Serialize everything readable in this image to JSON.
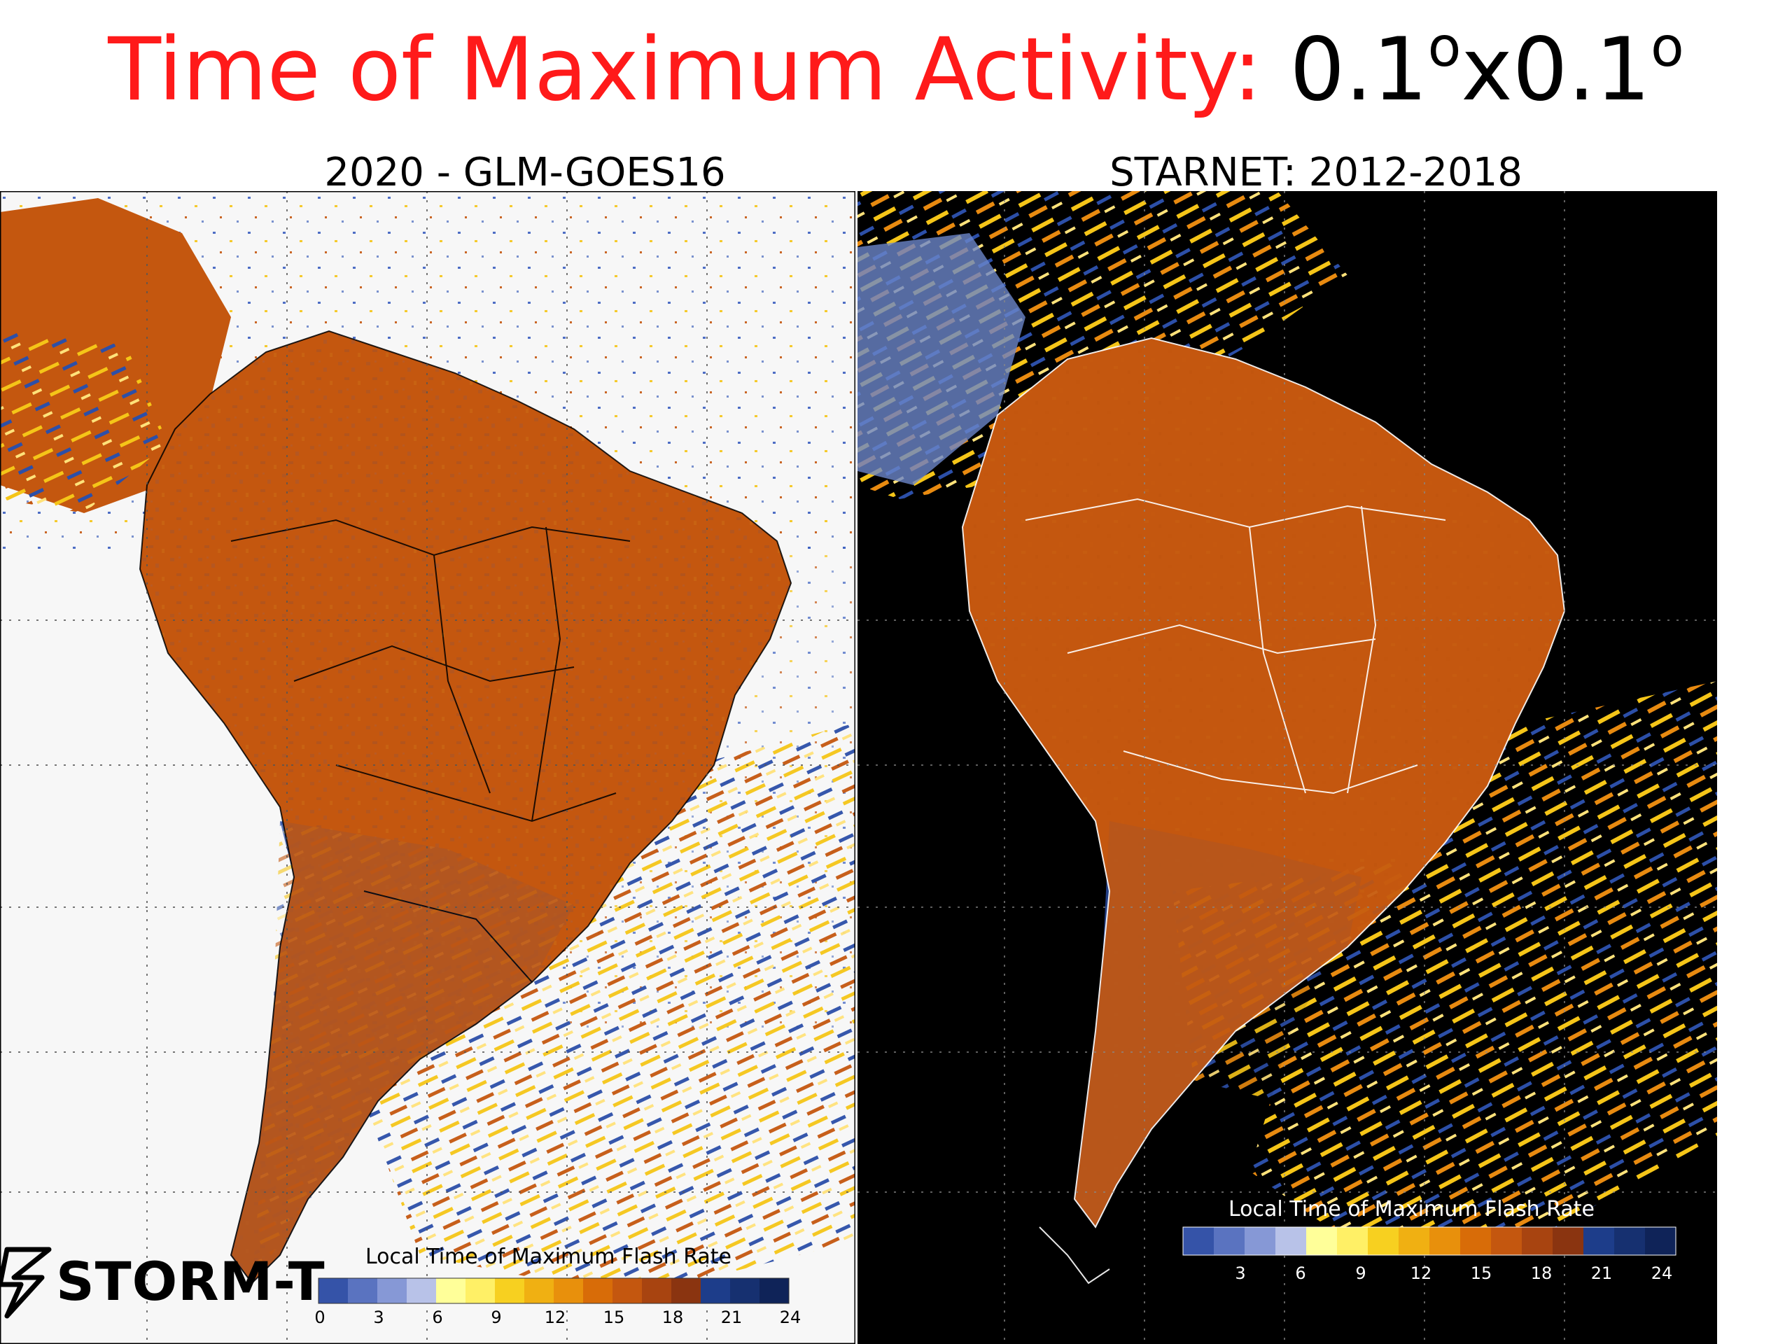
{
  "title": {
    "red_part": "Time of Maximum Activity:",
    "black_part": "0.1",
    "sup1": "o",
    "mid": "x0.1",
    "sup2": "o"
  },
  "panels": [
    {
      "title": "2020 - GLM-GOES16",
      "colorbar_title": "Local Time of Maximum Flash Rate",
      "ticks": [
        "0",
        "3",
        "6",
        "9",
        "12",
        "15",
        "18",
        "21",
        "24"
      ],
      "background": "#f7f7f7",
      "border_color": "#000000"
    },
    {
      "title": "STARNET: 2012-2018",
      "colorbar_title": "Local Time of Maximum Flash Rate",
      "ticks": [
        "3",
        "6",
        "9",
        "12",
        "15",
        "18",
        "21",
        "24"
      ],
      "background": "#000000",
      "border_color": "#ffffff"
    }
  ],
  "logo": {
    "text": "STORM-T",
    "icon": "lightning-icon"
  },
  "colors": {
    "title_red": "#ff1a1a",
    "land_orange": "#c4570f",
    "storm_blue": "#2c4fa8",
    "storm_yellow": "#f5c518"
  }
}
